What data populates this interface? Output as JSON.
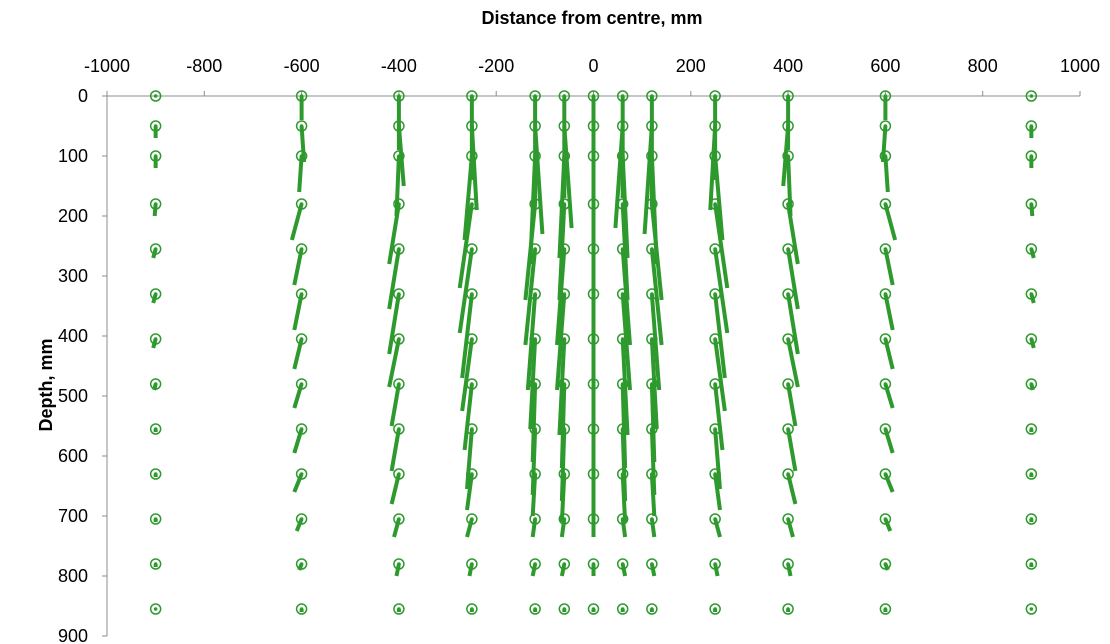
{
  "chart_data": {
    "type": "vector-field",
    "title": "",
    "xlabel": "Distance from centre, mm",
    "ylabel": "Depth, mm",
    "xlim": [
      -1000,
      1000
    ],
    "ylim": [
      0,
      900
    ],
    "x_axis_position": "top",
    "y_axis_inverted": true,
    "grid": false,
    "legend": "none",
    "x_ticks": [
      -1000,
      -800,
      -600,
      -400,
      -200,
      0,
      200,
      400,
      600,
      800,
      1000
    ],
    "y_ticks": [
      0,
      100,
      200,
      300,
      400,
      500,
      600,
      700,
      800,
      900
    ],
    "x_tick_labels": [
      "-1000",
      "-800",
      "-600",
      "-400",
      "-200",
      "0",
      "200",
      "400",
      "600",
      "800",
      "1000"
    ],
    "y_tick_labels": [
      "0",
      "100",
      "200",
      "300",
      "400",
      "500",
      "600",
      "700",
      "800",
      "900"
    ],
    "color": "#2e9a2e",
    "point_x": [
      -900,
      -600,
      -400,
      -250,
      -120,
      -60,
      0,
      60,
      120,
      250,
      400,
      600,
      900
    ],
    "point_depths": [
      0,
      50,
      100,
      180,
      255,
      330,
      405,
      480,
      555,
      630,
      705,
      780,
      855
    ],
    "vector_dx": [
      [
        0,
        0,
        0,
        0,
        0,
        0,
        0,
        0,
        0,
        0,
        0,
        0,
        0
      ],
      [
        0,
        5,
        10,
        10,
        15,
        15,
        0,
        -15,
        -15,
        -10,
        -10,
        -5,
        0
      ],
      [
        0,
        -5,
        -5,
        -15,
        -10,
        -10,
        0,
        10,
        10,
        15,
        5,
        5,
        0
      ],
      [
        -2,
        -20,
        -20,
        -25,
        -20,
        -10,
        0,
        10,
        20,
        25,
        20,
        20,
        2
      ],
      [
        -5,
        -15,
        -20,
        -25,
        -20,
        -15,
        0,
        15,
        20,
        25,
        20,
        15,
        5
      ],
      [
        -5,
        -15,
        -20,
        -20,
        -15,
        -15,
        0,
        15,
        15,
        20,
        20,
        15,
        5
      ],
      [
        -5,
        -15,
        -20,
        -20,
        -10,
        -10,
        0,
        10,
        10,
        20,
        20,
        15,
        5
      ],
      [
        -3,
        -15,
        -15,
        -15,
        -5,
        -5,
        0,
        5,
        5,
        15,
        15,
        15,
        3
      ],
      [
        0,
        -15,
        -15,
        -10,
        -5,
        -5,
        0,
        5,
        5,
        10,
        15,
        15,
        0
      ],
      [
        0,
        -15,
        -15,
        -10,
        -5,
        -5,
        0,
        5,
        5,
        10,
        15,
        15,
        0
      ],
      [
        0,
        -10,
        -10,
        -10,
        -5,
        -5,
        0,
        5,
        5,
        10,
        10,
        10,
        0
      ],
      [
        0,
        -5,
        -5,
        -5,
        -5,
        -5,
        0,
        5,
        5,
        5,
        5,
        5,
        0
      ],
      [
        0,
        0,
        0,
        0,
        0,
        0,
        0,
        0,
        0,
        0,
        0,
        0,
        0
      ]
    ],
    "vector_dy": [
      [
        0,
        40,
        90,
        140,
        180,
        170,
        170,
        170,
        180,
        140,
        90,
        40,
        0
      ],
      [
        20,
        60,
        100,
        140,
        180,
        170,
        170,
        170,
        180,
        140,
        100,
        60,
        20
      ],
      [
        20,
        60,
        100,
        140,
        180,
        170,
        170,
        170,
        180,
        140,
        100,
        60,
        20
      ],
      [
        20,
        60,
        100,
        140,
        160,
        160,
        160,
        160,
        160,
        140,
        100,
        60,
        20
      ],
      [
        15,
        60,
        100,
        140,
        160,
        160,
        160,
        160,
        160,
        140,
        100,
        60,
        15
      ],
      [
        15,
        60,
        100,
        140,
        160,
        160,
        160,
        160,
        160,
        140,
        100,
        60,
        15
      ],
      [
        15,
        50,
        80,
        120,
        150,
        160,
        160,
        160,
        150,
        120,
        80,
        50,
        15
      ],
      [
        10,
        40,
        70,
        110,
        130,
        140,
        140,
        140,
        130,
        110,
        70,
        40,
        10
      ],
      [
        5,
        40,
        70,
        100,
        110,
        120,
        120,
        120,
        110,
        100,
        70,
        40,
        5
      ],
      [
        5,
        30,
        50,
        60,
        70,
        80,
        80,
        80,
        70,
        60,
        50,
        30,
        5
      ],
      [
        5,
        20,
        30,
        30,
        30,
        30,
        30,
        30,
        30,
        30,
        30,
        20,
        5
      ],
      [
        5,
        10,
        20,
        20,
        20,
        20,
        20,
        20,
        20,
        20,
        20,
        10,
        5
      ],
      [
        0,
        5,
        5,
        5,
        5,
        5,
        5,
        5,
        5,
        5,
        5,
        5,
        0
      ]
    ]
  }
}
